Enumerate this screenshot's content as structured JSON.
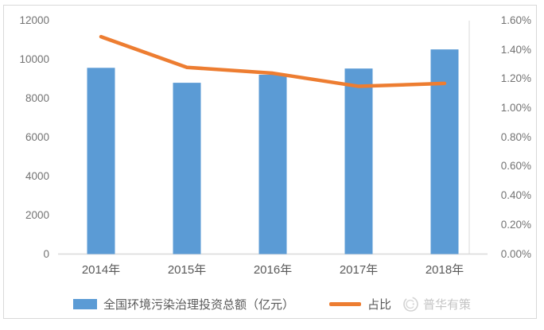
{
  "watermark": {
    "label": "普华有策"
  },
  "colors": {
    "bar": "#5b9bd5",
    "line": "#ed7d31",
    "axis_line": "#d9d9d9",
    "tick_text": "#737373",
    "category_text": "#595959",
    "legend_text": "#595959",
    "watermark_text": "#c4c4c4",
    "border": "#d9d9d9",
    "background": "#ffffff"
  },
  "chart_data": {
    "type": "combo",
    "categories": [
      "2014年",
      "2015年",
      "2016年",
      "2017年",
      "2018年"
    ],
    "series": [
      {
        "name": "全国环境污染治理投资总额（亿元）",
        "type": "bar",
        "axis": "left",
        "color": "#5b9bd5",
        "values": [
          9575.5,
          8806.3,
          9219.8,
          9539.0,
          10522.7
        ]
      },
      {
        "name": "占比",
        "type": "line",
        "axis": "right",
        "color": "#ed7d31",
        "values": [
          1.49,
          1.28,
          1.24,
          1.15,
          1.17
        ]
      }
    ],
    "left_axis": {
      "min": 0,
      "max": 12000,
      "step": 2000,
      "tick_labels": [
        "0",
        "2000",
        "4000",
        "6000",
        "8000",
        "10000",
        "12000"
      ]
    },
    "right_axis": {
      "min": 0,
      "max": 1.6,
      "step": 0.2,
      "tick_labels": [
        "0.00%",
        "0.20%",
        "0.40%",
        "0.60%",
        "0.80%",
        "1.00%",
        "1.20%",
        "1.40%",
        "1.60%"
      ]
    },
    "grid": false,
    "legend_position": "bottom"
  }
}
